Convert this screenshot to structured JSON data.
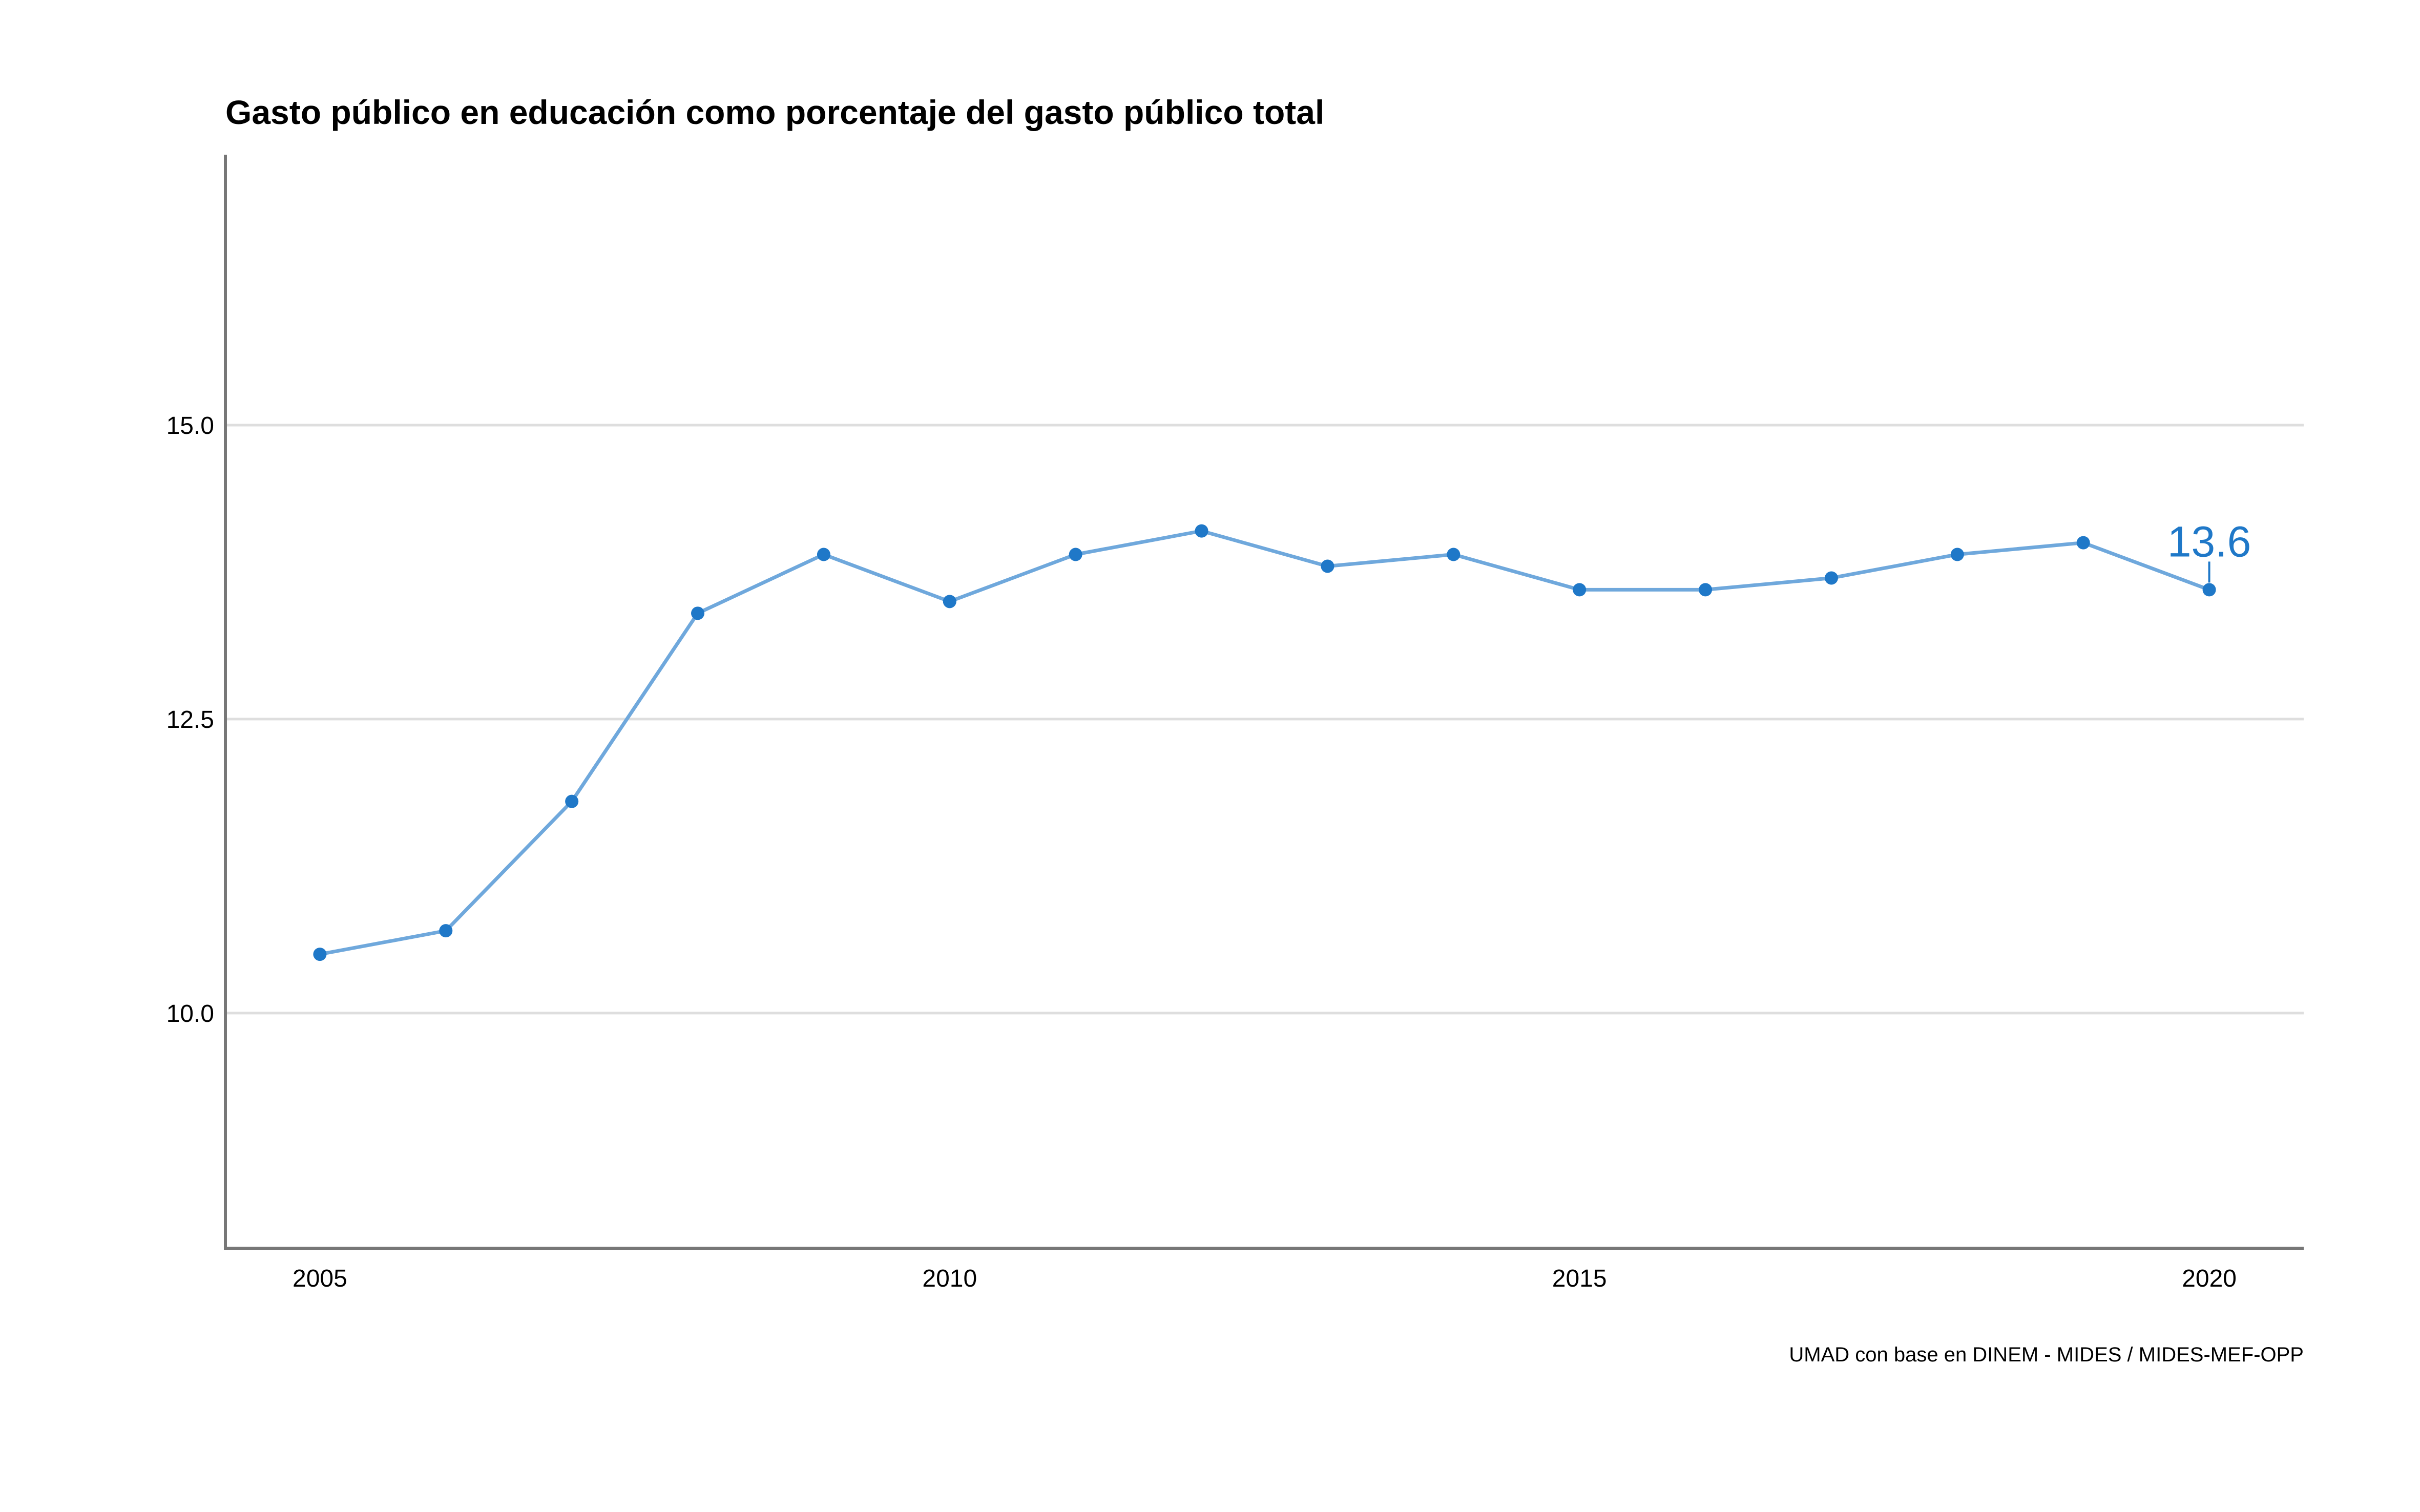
{
  "chart_data": {
    "type": "line",
    "title": "Gasto público en educación como porcentaje del gasto público total",
    "xlabel": "",
    "ylabel": "",
    "caption": "UMAD con base en DINEM - MIDES / MIDES-MEF-OPP",
    "x": [
      2005,
      2006,
      2007,
      2008,
      2009,
      2010,
      2011,
      2012,
      2013,
      2014,
      2015,
      2016,
      2017,
      2018,
      2019,
      2020
    ],
    "series": [
      {
        "values": [
          10.5,
          10.7,
          11.8,
          13.4,
          13.9,
          13.5,
          13.9,
          14.1,
          13.8,
          13.9,
          13.6,
          13.6,
          13.7,
          13.9,
          14.0,
          13.6
        ]
      }
    ],
    "xlim": [
      2004.25,
      2020.75
    ],
    "ylim": [
      8.0,
      17.3
    ],
    "x_ticks": [
      2005,
      2010,
      2015,
      2020
    ],
    "x_tick_labels": [
      "2005",
      "2010",
      "2015",
      "2020"
    ],
    "y_ticks": [
      10.0,
      12.5,
      15.0
    ],
    "y_tick_labels": [
      "10.0",
      "12.5",
      "15.0"
    ],
    "grid": "horizontal",
    "end_label": {
      "x": 2020,
      "text": "13.6"
    },
    "colors": {
      "line": "#6fa8dc",
      "point": "#1f78c8",
      "end_label": "#1f78c8",
      "grid": "#dedede",
      "axis": "#777777"
    }
  }
}
